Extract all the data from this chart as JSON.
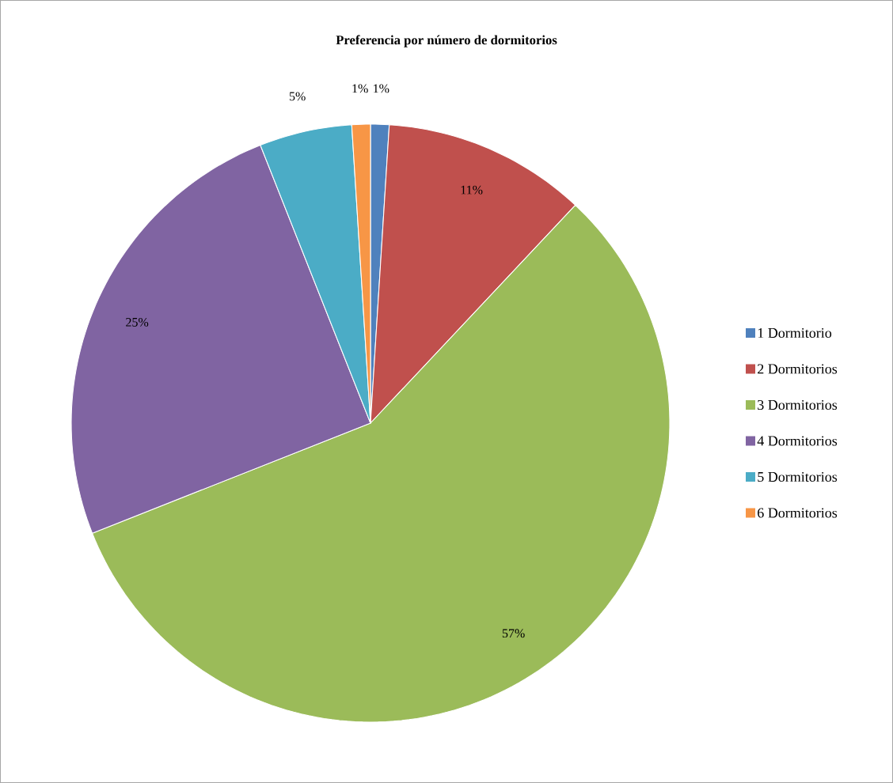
{
  "chart_data": {
    "type": "pie",
    "title": "Preferencia por número de dormitorios",
    "categories": [
      "1 Dormitorio",
      "2 Dormitorios",
      "3 Dormitorios",
      "4 Dormitorios",
      "5 Dormitorios",
      "6 Dormitorios"
    ],
    "values": [
      1,
      11,
      57,
      25,
      5,
      1
    ],
    "value_labels": [
      "1%",
      "11%",
      "57%",
      "25%",
      "5%",
      "1%"
    ],
    "colors": [
      "#4f81bd",
      "#c0504d",
      "#9bbb59",
      "#8064a2",
      "#4bacc6",
      "#f79646"
    ],
    "legend": "right"
  }
}
